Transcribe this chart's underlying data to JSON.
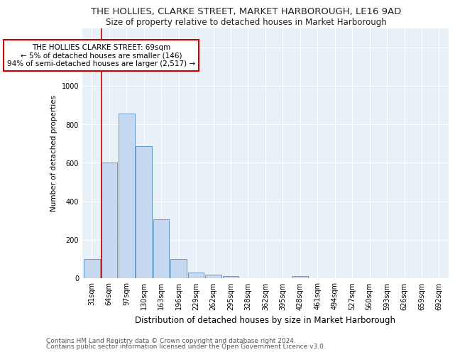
{
  "title": "THE HOLLIES, CLARKE STREET, MARKET HARBOROUGH, LE16 9AD",
  "subtitle": "Size of property relative to detached houses in Market Harborough",
  "xlabel": "Distribution of detached houses by size in Market Harborough",
  "ylabel": "Number of detached properties",
  "bar_labels": [
    "31sqm",
    "64sqm",
    "97sqm",
    "130sqm",
    "163sqm",
    "196sqm",
    "229sqm",
    "262sqm",
    "295sqm",
    "328sqm",
    "362sqm",
    "395sqm",
    "428sqm",
    "461sqm",
    "494sqm",
    "527sqm",
    "560sqm",
    "593sqm",
    "626sqm",
    "659sqm",
    "692sqm"
  ],
  "bar_values": [
    100,
    600,
    855,
    685,
    305,
    100,
    30,
    20,
    10,
    0,
    0,
    0,
    10,
    0,
    0,
    0,
    0,
    0,
    0,
    0,
    0
  ],
  "bar_color": "#c5d8f0",
  "bar_edge_color": "#6699cc",
  "ylim": [
    0,
    1300
  ],
  "yticks": [
    0,
    200,
    400,
    600,
    800,
    1000,
    1200
  ],
  "subject_bar_index": 1,
  "subject_line_color": "#cc0000",
  "annotation_text": "THE HOLLIES CLARKE STREET: 69sqm\n← 5% of detached houses are smaller (146)\n94% of semi-detached houses are larger (2,517) →",
  "annotation_box_color": "#ffffff",
  "annotation_box_edge_color": "#cc0000",
  "footer_line1": "Contains HM Land Registry data © Crown copyright and database right 2024.",
  "footer_line2": "Contains public sector information licensed under the Open Government Licence v3.0.",
  "plot_bg_color": "#e8f0f8",
  "fig_bg_color": "#ffffff",
  "grid_color": "#ffffff",
  "title_fontsize": 9.5,
  "subtitle_fontsize": 8.5,
  "xlabel_fontsize": 8.5,
  "ylabel_fontsize": 7.5,
  "tick_fontsize": 7,
  "footer_fontsize": 6.5,
  "annotation_fontsize": 7.5
}
